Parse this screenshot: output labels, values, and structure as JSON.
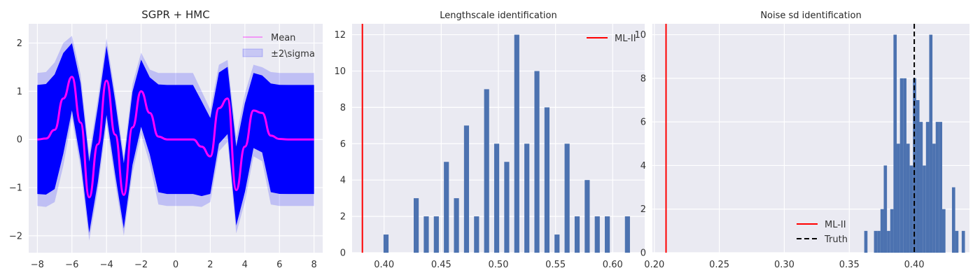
{
  "colors": {
    "axes_bg": "#eaeaf2",
    "band": "#0000ff",
    "mean": "#ff00ff",
    "hist": "#4c72b0",
    "ml2": "#ff0000",
    "truth": "#000000"
  },
  "chart_data": [
    {
      "type": "line",
      "title": "SGPR + HMC",
      "xlim": [
        -8.5,
        8.5
      ],
      "ylim": [
        -2.35,
        2.4
      ],
      "xticks": [
        -8,
        -6,
        -4,
        -2,
        0,
        2,
        4,
        6,
        8
      ],
      "yticks": [
        -2,
        -1,
        0,
        1,
        2
      ],
      "grid": true,
      "legend_position": "top-right",
      "legend": [
        "Mean",
        "±2\\sigma"
      ],
      "x": [
        -8,
        -7.5,
        -7,
        -6.5,
        -6,
        -5.5,
        -5,
        -4.5,
        -4,
        -3.5,
        -3,
        -2.5,
        -2,
        -1.5,
        -1,
        -0.5,
        0,
        0.5,
        1,
        1.5,
        2,
        2.5,
        3,
        3.5,
        4,
        4.5,
        5,
        5.5,
        6,
        6.5,
        7,
        7.5,
        8
      ],
      "series": [
        {
          "name": "Mean",
          "values": [
            0.0,
            0.02,
            0.2,
            0.85,
            1.3,
            0.35,
            -1.2,
            -0.1,
            1.22,
            0.1,
            -1.15,
            0.25,
            1.0,
            0.55,
            0.06,
            0.0,
            0.0,
            0.0,
            0.0,
            -0.15,
            -0.35,
            0.65,
            0.85,
            -1.05,
            -0.15,
            0.6,
            0.55,
            0.08,
            0.01,
            0.0,
            0.0,
            0.0,
            0.0
          ]
        },
        {
          "name": "±2\\sigma",
          "upper": [
            1.38,
            1.4,
            1.6,
            2.0,
            2.15,
            1.35,
            -0.3,
            0.85,
            2.1,
            0.95,
            -0.35,
            1.15,
            1.8,
            1.45,
            1.38,
            1.38,
            1.38,
            1.38,
            1.38,
            1.0,
            0.62,
            1.55,
            1.65,
            0.05,
            0.95,
            1.55,
            1.5,
            1.4,
            1.38,
            1.38,
            1.38,
            1.38,
            1.38
          ],
          "lower": [
            -1.38,
            -1.4,
            -1.3,
            -0.55,
            0.45,
            -0.6,
            -2.1,
            -1.05,
            0.35,
            -0.9,
            -2.0,
            -0.7,
            0.1,
            -0.5,
            -1.35,
            -1.38,
            -1.38,
            -1.38,
            -1.38,
            -1.4,
            -1.3,
            -0.25,
            -0.05,
            -1.95,
            -1.3,
            -0.35,
            -0.45,
            -1.35,
            -1.38,
            -1.38,
            -1.38,
            -1.38,
            -1.38
          ]
        }
      ]
    },
    {
      "type": "bar",
      "title": "Lengthscale identification",
      "xlim": [
        0.372,
        0.628
      ],
      "ylim": [
        0,
        12.6
      ],
      "xticks": [
        0.4,
        0.45,
        0.5,
        0.55,
        0.6
      ],
      "xtick_labels": [
        "0.40",
        "0.45",
        "0.50",
        "0.55",
        "0.60"
      ],
      "yticks": [
        0,
        2,
        4,
        6,
        8,
        10,
        12
      ],
      "grid": true,
      "legend_position": "top-right",
      "legend": [
        "ML-II"
      ],
      "bin_edges": [
        0.3995,
        0.4039,
        0.4083,
        0.4127,
        0.4171,
        0.4215,
        0.4259,
        0.4303,
        0.4347,
        0.4391,
        0.4435,
        0.4479,
        0.4523,
        0.4567,
        0.4611,
        0.4655,
        0.4699,
        0.4743,
        0.4787,
        0.4831,
        0.4875,
        0.4919,
        0.4963,
        0.5007,
        0.5051,
        0.5095,
        0.5139,
        0.5183,
        0.5227,
        0.5271,
        0.5315,
        0.5359,
        0.5403,
        0.5447,
        0.5491,
        0.5535,
        0.5579,
        0.5623,
        0.5667,
        0.5711,
        0.5755,
        0.5799,
        0.5843,
        0.5887,
        0.5931,
        0.5975,
        0.6019,
        0.6063,
        0.6107,
        0.6151,
        0.6195
      ],
      "counts": [
        1,
        0,
        0,
        0,
        0,
        0,
        3,
        0,
        2,
        0,
        2,
        0,
        5,
        0,
        3,
        0,
        7,
        0,
        2,
        0,
        9,
        0,
        6,
        0,
        5,
        0,
        12,
        0,
        6,
        0,
        10,
        0,
        8,
        0,
        1,
        0,
        6,
        0,
        2,
        0,
        4,
        0,
        2,
        0,
        2,
        0,
        0,
        0,
        2,
        0
      ],
      "vlines": [
        {
          "name": "ML-II",
          "x": 0.381,
          "style": "solid"
        }
      ]
    },
    {
      "type": "bar",
      "title": "Noise sd identification",
      "xlim": [
        0.1985,
        0.4425
      ],
      "ylim": [
        0,
        10.5
      ],
      "xticks": [
        0.2,
        0.25,
        0.3,
        0.35,
        0.4
      ],
      "xtick_labels": [
        "0.20",
        "0.25",
        "0.30",
        "0.35",
        "0.40"
      ],
      "yticks": [
        0,
        2,
        4,
        6,
        8,
        10
      ],
      "grid": true,
      "legend_position": "bottom-center",
      "legend": [
        "ML-II",
        "Truth"
      ],
      "bin_edges": [
        0.3615,
        0.364,
        0.3665,
        0.369,
        0.3715,
        0.374,
        0.3765,
        0.379,
        0.3815,
        0.384,
        0.3865,
        0.389,
        0.3915,
        0.394,
        0.3965,
        0.399,
        0.4015,
        0.404,
        0.4065,
        0.409,
        0.4115,
        0.414,
        0.4165,
        0.419,
        0.4215,
        0.424,
        0.4265,
        0.429,
        0.4315,
        0.434,
        0.4365,
        0.439
      ],
      "counts": [
        1,
        0,
        0,
        1,
        1,
        2,
        4,
        1,
        2,
        10,
        5,
        8,
        8,
        5,
        4,
        8,
        7,
        6,
        4,
        6,
        10,
        5,
        6,
        6,
        2,
        0,
        0,
        3,
        1,
        0,
        1
      ],
      "vlines": [
        {
          "name": "ML-II",
          "x": 0.209,
          "style": "solid"
        },
        {
          "name": "Truth",
          "x": 0.4,
          "style": "dashed"
        }
      ]
    }
  ]
}
